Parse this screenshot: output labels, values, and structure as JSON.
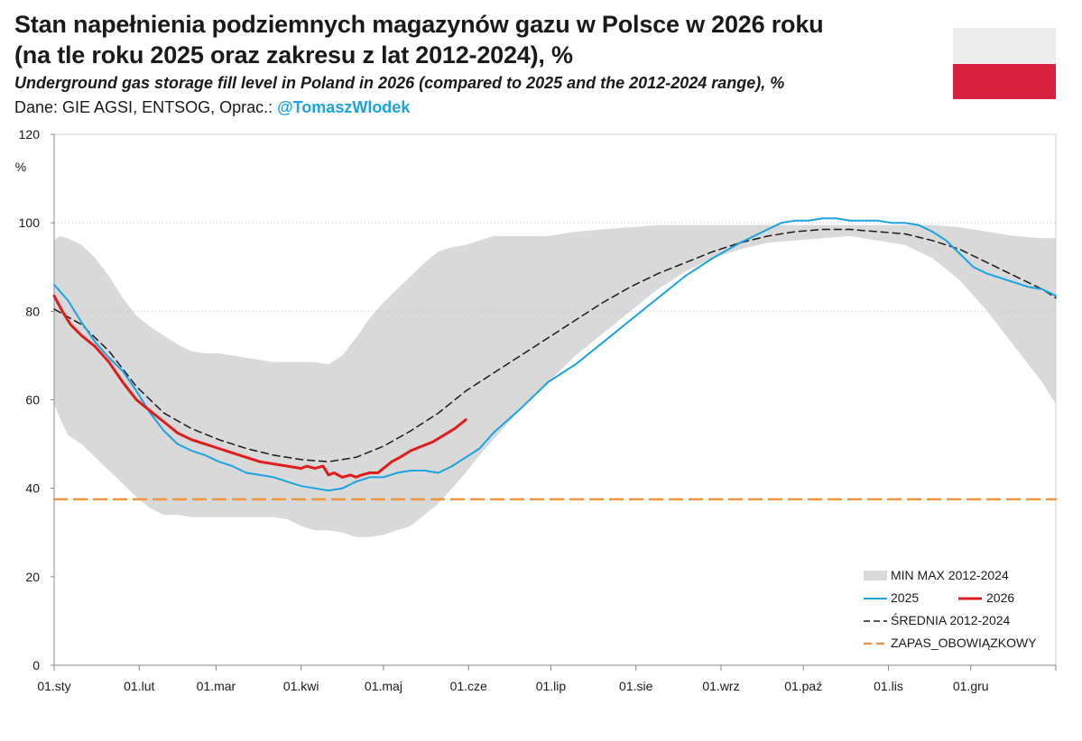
{
  "header": {
    "title_line1": "Stan napełnienia podziemnych magazynów gazu w Polsce w 2026 roku",
    "title_line2": "(na tle roku 2025 oraz zakresu z lat 2012-2024), %",
    "subtitle": "Underground gas storage fill level in Poland in 2026 (compared to 2025 and the 2012-2024 range), %",
    "source_prefix": "Dane: GIE AGSI, ENTSOG, Oprac.: ",
    "source_handle": "@TomaszWlodek"
  },
  "flag": {
    "name": "poland-flag-icon",
    "colors": [
      "#ececec",
      "#d7213f"
    ]
  },
  "colors": {
    "band": "#d9d9d9",
    "series_2025": "#1aa3e0",
    "series_2026": "#e01b1b",
    "average": "#1a1a1a",
    "mandatory": "#f0943e"
  },
  "chart_data": {
    "type": "line",
    "ylabel": "%",
    "ylim": [
      0,
      120
    ],
    "yticks": [
      0,
      20,
      40,
      60,
      80,
      100,
      120
    ],
    "grid": "horizontal dotted at 80 and 100",
    "legend_position": "bottom-right",
    "x_domain_days": [
      0,
      365
    ],
    "month_ticks": [
      {
        "label": "01.sty",
        "day": 0
      },
      {
        "label": "01.lut",
        "day": 31
      },
      {
        "label": "01.mar",
        "day": 59
      },
      {
        "label": "01.kwi",
        "day": 90
      },
      {
        "label": "01.maj",
        "day": 120
      },
      {
        "label": "01.cze",
        "day": 151
      },
      {
        "label": "01.lip",
        "day": 181
      },
      {
        "label": "01.sie",
        "day": 212
      },
      {
        "label": "01.wrz",
        "day": 243
      },
      {
        "label": "01.paź",
        "day": 273
      },
      {
        "label": "01.lis",
        "day": 304
      },
      {
        "label": "01.gru",
        "day": 334
      }
    ],
    "band": {
      "name": "MIN MAX 2012-2024",
      "day": [
        0,
        2,
        5,
        10,
        15,
        20,
        25,
        30,
        35,
        40,
        45,
        50,
        55,
        60,
        65,
        70,
        75,
        80,
        85,
        90,
        95,
        100,
        105,
        110,
        115,
        120,
        125,
        130,
        135,
        140,
        145,
        150,
        155,
        160,
        170,
        180,
        190,
        200,
        210,
        220,
        230,
        240,
        250,
        260,
        270,
        280,
        290,
        300,
        310,
        320,
        330,
        340,
        350,
        360,
        365
      ],
      "min": [
        59,
        56,
        52,
        50,
        47,
        44,
        41,
        38,
        35.5,
        34,
        34,
        33.5,
        33.5,
        33.5,
        33.5,
        33.5,
        33.5,
        33.5,
        33,
        31.5,
        30.5,
        30.5,
        30,
        29,
        29,
        29.5,
        30.5,
        31.5,
        34,
        36.5,
        40,
        43.5,
        47.5,
        51,
        58,
        64,
        70,
        75,
        80,
        85,
        89,
        92,
        94,
        95.5,
        96,
        96.5,
        97,
        96,
        95,
        92,
        87,
        80,
        72,
        64,
        59
      ],
      "max": [
        96,
        97,
        96.5,
        95,
        92,
        88,
        83,
        79,
        76.5,
        74.5,
        72.5,
        71,
        70.5,
        70.5,
        70,
        69.5,
        69,
        68.5,
        68.5,
        68.5,
        68.5,
        68,
        70,
        74,
        78.5,
        82,
        85,
        88,
        91,
        93.5,
        94.5,
        95,
        96,
        97,
        97,
        97,
        98,
        98.5,
        99,
        99.5,
        99.5,
        99.5,
        99.5,
        99.5,
        99.5,
        99.5,
        99.5,
        99.5,
        99.5,
        99.5,
        99,
        98,
        97,
        96.5,
        96.5
      ]
    },
    "series": [
      {
        "name": "2025",
        "day": [
          0,
          5,
          10,
          15,
          20,
          25,
          30,
          35,
          40,
          45,
          50,
          55,
          60,
          65,
          70,
          75,
          80,
          85,
          90,
          95,
          100,
          105,
          110,
          115,
          120,
          125,
          130,
          135,
          140,
          145,
          150,
          155,
          160,
          170,
          180,
          190,
          200,
          210,
          220,
          230,
          240,
          250,
          260,
          265,
          270,
          275,
          280,
          285,
          290,
          295,
          300,
          305,
          310,
          315,
          320,
          325,
          330,
          335,
          340,
          345,
          350,
          355,
          360,
          365
        ],
        "values": [
          86,
          82.5,
          77.5,
          73,
          69.5,
          66.5,
          62,
          57,
          53,
          50,
          48.5,
          47.5,
          46,
          45,
          43.5,
          43,
          42.5,
          41.5,
          40.5,
          40,
          39.5,
          40,
          41.5,
          42.5,
          42.5,
          43.5,
          44,
          44,
          43.5,
          45,
          47,
          49,
          52.5,
          58,
          64,
          68,
          73,
          78,
          83,
          88,
          92,
          95.5,
          98.5,
          100,
          100.5,
          100.5,
          101,
          101,
          100.5,
          100.5,
          100.5,
          100,
          100,
          99.5,
          98,
          96,
          93,
          90,
          88.5,
          87.5,
          86.5,
          85.5,
          85,
          83.5
        ]
      },
      {
        "name": "2026",
        "day": [
          0,
          3,
          6,
          10,
          15,
          20,
          25,
          30,
          35,
          40,
          45,
          50,
          55,
          60,
          65,
          70,
          75,
          80,
          85,
          90,
          92,
          95,
          98,
          100,
          102,
          105,
          108,
          110,
          112,
          115,
          118,
          120,
          123,
          126,
          130,
          134,
          138,
          142,
          146,
          148,
          150
        ],
        "values": [
          83.5,
          80,
          77,
          74.5,
          72,
          68.5,
          64,
          60,
          57.5,
          55,
          52.5,
          51,
          50,
          49,
          48,
          47,
          46,
          45.5,
          45,
          44.5,
          45,
          44.5,
          45,
          43,
          43.5,
          42.5,
          43,
          42.5,
          43,
          43.5,
          43.5,
          44.5,
          46,
          47,
          48.5,
          49.5,
          50.5,
          52,
          53.5,
          54.5,
          55.5
        ]
      },
      {
        "name": "ŚREDNIA 2012-2024",
        "day": [
          0,
          10,
          20,
          30,
          40,
          50,
          60,
          70,
          80,
          90,
          100,
          110,
          120,
          130,
          140,
          150,
          160,
          170,
          180,
          190,
          200,
          210,
          220,
          230,
          240,
          250,
          260,
          270,
          280,
          290,
          300,
          310,
          320,
          330,
          340,
          350,
          360,
          365
        ],
        "values": [
          80.5,
          77,
          71,
          63,
          57,
          53.5,
          51,
          49,
          47.5,
          46.5,
          46,
          47,
          49.5,
          53,
          57,
          62,
          66,
          70,
          74,
          78,
          82,
          85.5,
          88.5,
          91,
          93.5,
          95.5,
          97,
          98,
          98.5,
          98.5,
          98,
          97.5,
          96,
          94,
          91,
          88,
          85,
          83
        ]
      },
      {
        "name": "ZAPAS_OBOWIĄZKOWY",
        "day": [
          0,
          365
        ],
        "values": [
          37.5,
          37.5
        ]
      }
    ]
  },
  "legend": {
    "band": "MIN MAX 2012-2024",
    "s2025": "2025",
    "s2026": "2026",
    "average": "ŚREDNIA 2012-2024",
    "mandatory": "ZAPAS_OBOWIĄZKOWY"
  }
}
